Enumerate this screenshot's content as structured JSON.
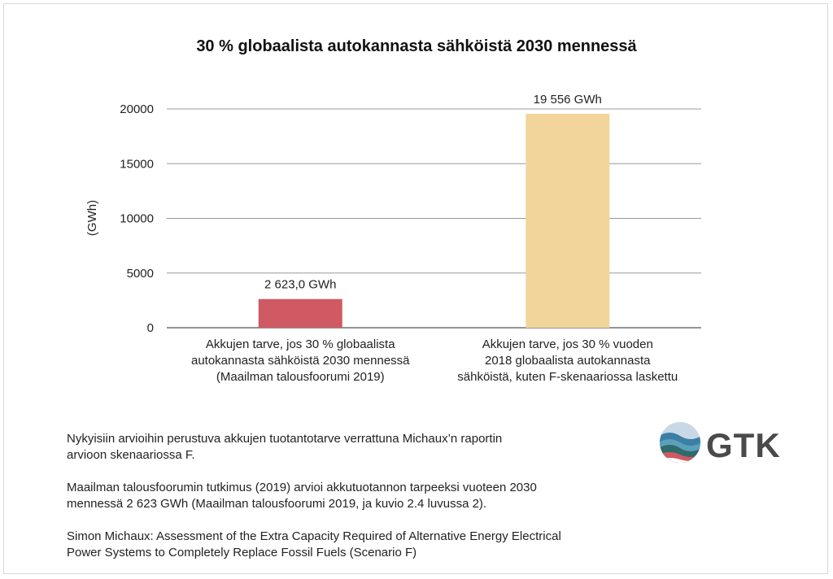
{
  "chart_data": {
    "type": "bar",
    "title": "30 % globaalista autokannasta sähköistä 2030 mennessä",
    "ylabel": "(GWh)",
    "xlabel": "",
    "ylim": [
      0,
      20000
    ],
    "yticks": [
      0,
      5000,
      10000,
      15000,
      20000
    ],
    "grid": true,
    "categories": [
      [
        "Akkujen tarve, jos 30 % globaalista",
        "autokannasta sähköistä 2030 mennessä",
        "(Maailman talousfoorumi 2019)"
      ],
      [
        "Akkujen tarve, jos 30 % vuoden",
        "2018 globaalista autokannasta",
        "sähköistä, kuten F-skenaariossa laskettu"
      ]
    ],
    "values": [
      2623.0,
      19556
    ],
    "data_labels": [
      "2 623,0 GWh",
      "19 556 GWh"
    ],
    "colors": [
      "#d05a63",
      "#f2d59b"
    ]
  },
  "footer": {
    "para1": [
      "Nykyisiin arvioihin perustuva akkujen tuotantotarve verrattuna Michaux’n raportin",
      "arvioon skenaariossa F."
    ],
    "para2": [
      "Maailman talousfoorumin tutkimus (2019) arvioi akkutuotannon tarpeeksi vuoteen 2030",
      "mennessä 2 623 GWh (Maailman talousfoorumi 2019, ja kuvio 2.4 luvussa 2)."
    ],
    "para3": [
      "Simon Michaux: Assessment of the Extra Capacity Required of Alternative Energy Electrical",
      "Power Systems to Completely Replace Fossil Fuels (Scenario F)"
    ]
  },
  "logo": {
    "text": "GTK",
    "colors": [
      "#c9d8e6",
      "#3b7fa6",
      "#2f6b6b",
      "#d05a63"
    ]
  }
}
